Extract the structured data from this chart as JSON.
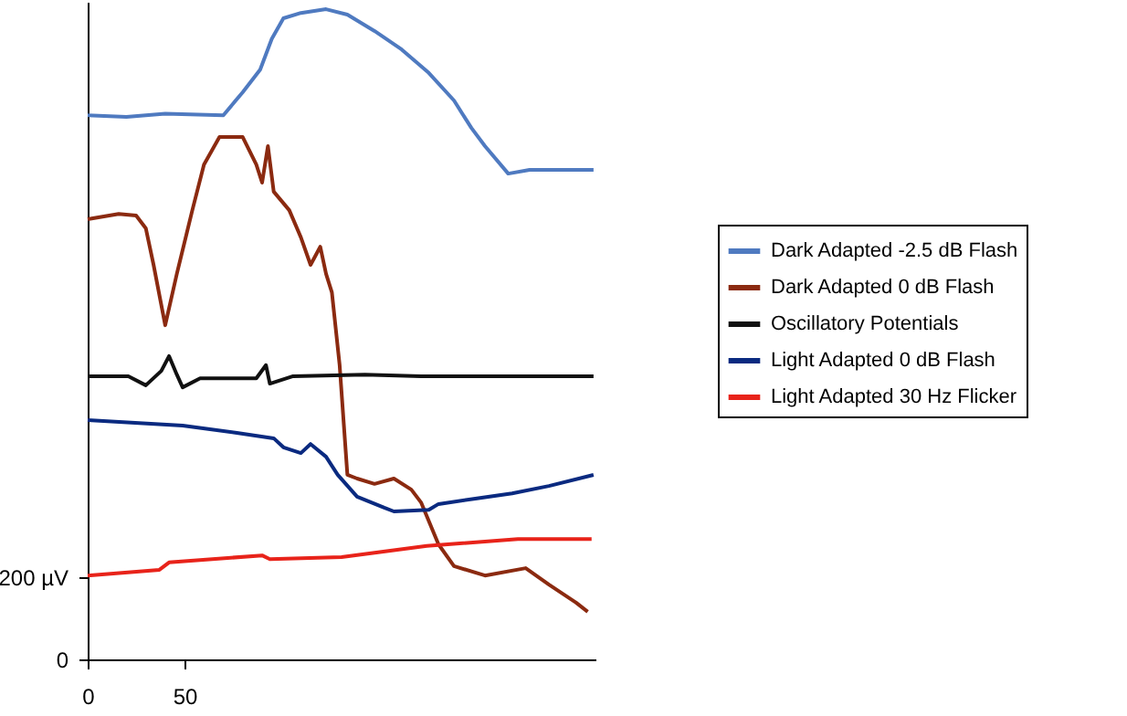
{
  "chart_data": {
    "type": "line",
    "xlim": [
      0,
      262
    ],
    "xticks": [
      0,
      50
    ],
    "ylim": [
      0,
      1600
    ],
    "yticks": [
      0,
      {
        "value": 200,
        "label": "200 µV"
      }
    ],
    "grid": false,
    "legend": "right",
    "line_style": "solid",
    "marker": "none",
    "series": [
      {
        "name": "Dark Adapted -2.5 dB Flash",
        "color": "#4f7ac0",
        "x": [
          0,
          20,
          40,
          70,
          80,
          89,
          95,
          101,
          110,
          123,
          134,
          148,
          162,
          176,
          189,
          198,
          205,
          217,
          228,
          238,
          261
        ],
        "values": [
          1324,
          1320,
          1328,
          1324,
          1380,
          1435,
          1510,
          1560,
          1573,
          1582,
          1569,
          1529,
          1484,
          1427,
          1360,
          1293,
          1249,
          1182,
          1191,
          1191,
          1191
        ]
      },
      {
        "name": "Dark Adapted 0 dB Flash",
        "color": "#8b2a10",
        "x": [
          0,
          16,
          25,
          30,
          34,
          40,
          46,
          54,
          60,
          68,
          80,
          87,
          90,
          93,
          96,
          104,
          110,
          115,
          120,
          123,
          126,
          130,
          134,
          139,
          148,
          158,
          167,
          172,
          181,
          189,
          205,
          226,
          238,
          252,
          258
        ],
        "values": [
          1071,
          1084,
          1080,
          1049,
          960,
          813,
          938,
          1093,
          1204,
          1271,
          1271,
          1204,
          1160,
          1249,
          1138,
          1093,
          1027,
          960,
          1004,
          938,
          893,
          716,
          449,
          440,
          427,
          440,
          413,
          382,
          280,
          227,
          204,
          222,
          182,
          138,
          116
        ]
      },
      {
        "name": "Oscillatory Potentials",
        "color": "#111111",
        "x": [
          0,
          21,
          30,
          38,
          42,
          46,
          49,
          58,
          77,
          87,
          92,
          94,
          106,
          143,
          172,
          238,
          261
        ],
        "values": [
          689,
          689,
          667,
          702,
          738,
          693,
          662,
          684,
          684,
          684,
          716,
          671,
          689,
          693,
          689,
          689,
          689
        ]
      },
      {
        "name": "Light Adapted 0 dB Flash",
        "color": "#0a2a80",
        "x": [
          0,
          49,
          77,
          96,
          101,
          110,
          115,
          123,
          129,
          139,
          153,
          158,
          176,
          181,
          200,
          219,
          238,
          261
        ],
        "values": [
          582,
          569,
          551,
          538,
          516,
          502,
          524,
          493,
          449,
          396,
          369,
          360,
          364,
          378,
          391,
          404,
          422,
          449
        ]
      },
      {
        "name": "Light Adapted 30 Hz Flicker",
        "color": "#e8231a",
        "x": [
          0,
          37,
          42,
          90,
          94,
          131,
          175,
          222,
          260
        ],
        "values": [
          204,
          218,
          236,
          253,
          244,
          249,
          276,
          293,
          293
        ]
      }
    ]
  }
}
